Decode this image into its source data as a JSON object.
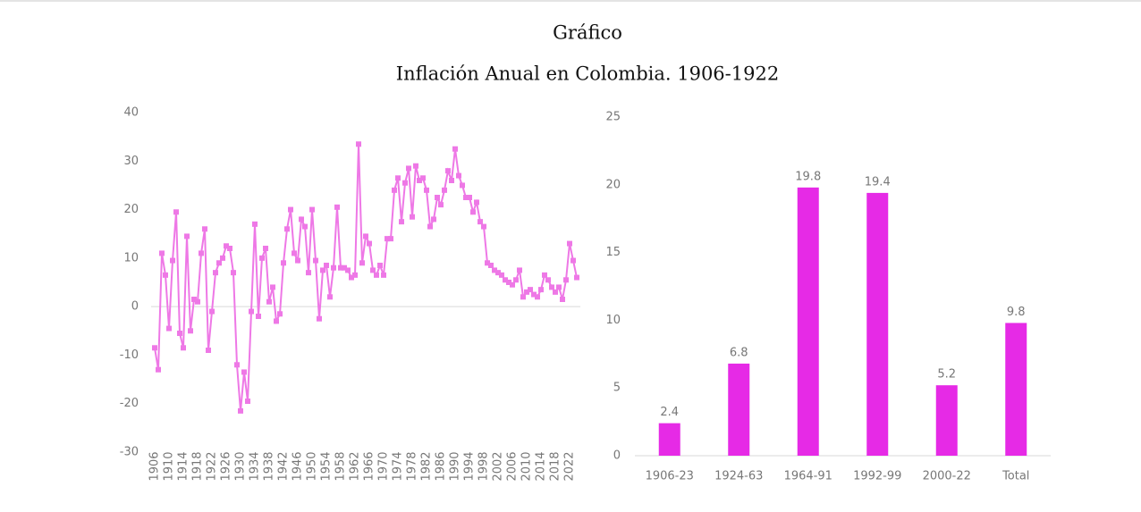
{
  "header": {
    "title": "Gráfico",
    "subtitle": "Inflación Anual en Colombia. 1906-1922"
  },
  "chart_data": [
    {
      "type": "line",
      "color": "#ee78e6",
      "x": [
        1906,
        1907,
        1908,
        1909,
        1910,
        1911,
        1912,
        1913,
        1914,
        1915,
        1916,
        1917,
        1918,
        1919,
        1920,
        1921,
        1922,
        1923,
        1924,
        1925,
        1926,
        1927,
        1928,
        1929,
        1930,
        1931,
        1932,
        1933,
        1934,
        1935,
        1936,
        1937,
        1938,
        1939,
        1940,
        1941,
        1942,
        1943,
        1944,
        1945,
        1946,
        1947,
        1948,
        1949,
        1950,
        1951,
        1952,
        1953,
        1954,
        1955,
        1956,
        1957,
        1958,
        1959,
        1960,
        1961,
        1962,
        1963,
        1964,
        1965,
        1966,
        1967,
        1968,
        1969,
        1970,
        1971,
        1972,
        1973,
        1974,
        1975,
        1976,
        1977,
        1978,
        1979,
        1980,
        1981,
        1982,
        1983,
        1984,
        1985,
        1986,
        1987,
        1988,
        1989,
        1990,
        1991,
        1992,
        1993,
        1994,
        1995,
        1996,
        1997,
        1998,
        1999,
        2000,
        2001,
        2002,
        2003,
        2004,
        2005,
        2006,
        2007,
        2008,
        2009,
        2010,
        2011,
        2012,
        2013,
        2014,
        2015,
        2016,
        2017,
        2018,
        2019,
        2020,
        2021,
        2022,
        2023,
        2024
      ],
      "values": [
        -8.5,
        -13,
        11,
        6.5,
        -4.5,
        9.5,
        19.5,
        -5.5,
        -8.5,
        14.5,
        -5,
        1.5,
        1,
        11,
        16,
        -9,
        -1,
        7,
        9,
        10,
        12.5,
        12,
        7,
        -12,
        -21.5,
        -13.5,
        -19.5,
        -1,
        17,
        -2,
        10,
        12,
        1,
        4,
        -3,
        -1.5,
        9,
        16,
        20,
        11,
        9.5,
        18,
        16.5,
        7,
        20,
        9.5,
        -2.5,
        7.5,
        8.5,
        2,
        8,
        20.5,
        8,
        8,
        7.5,
        6,
        6.5,
        33.5,
        9,
        14.5,
        13,
        7.5,
        6.5,
        8.5,
        6.5,
        14,
        14,
        24,
        26.5,
        17.5,
        25.5,
        28.5,
        18.5,
        29,
        26,
        26.5,
        24,
        16.5,
        18,
        22.5,
        21,
        24,
        28,
        26,
        32.5,
        27,
        25,
        22.5,
        22.5,
        19.5,
        21.5,
        17.5,
        16.5,
        9,
        8.5,
        7.5,
        7,
        6.5,
        5.5,
        5,
        4.5,
        5.5,
        7.5,
        2,
        3,
        3.5,
        2.5,
        2,
        3.5,
        6.5,
        5.5,
        4,
        3,
        4,
        1.5,
        5.5,
        13,
        9.5,
        6
      ],
      "xlim": [
        1905,
        2025
      ],
      "xticks": [
        1906,
        1910,
        1914,
        1918,
        1922,
        1926,
        1930,
        1934,
        1938,
        1942,
        1946,
        1950,
        1954,
        1958,
        1962,
        1966,
        1970,
        1974,
        1978,
        1982,
        1986,
        1990,
        1994,
        1998,
        2002,
        2006,
        2010,
        2014,
        2018,
        2022
      ],
      "ylim": [
        -30,
        40
      ],
      "yticks": [
        -30,
        -20,
        -10,
        0,
        10,
        20,
        30,
        40
      ]
    },
    {
      "type": "bar",
      "color": "#e62ae6",
      "categories": [
        "1906-23",
        "1924-63",
        "1964-91",
        "1992-99",
        "2000-22",
        "Total"
      ],
      "values": [
        2.4,
        6.8,
        19.8,
        19.4,
        5.2,
        9.8
      ],
      "ylim": [
        0,
        25
      ],
      "yticks": [
        0,
        5,
        10,
        15,
        20,
        25
      ]
    }
  ]
}
